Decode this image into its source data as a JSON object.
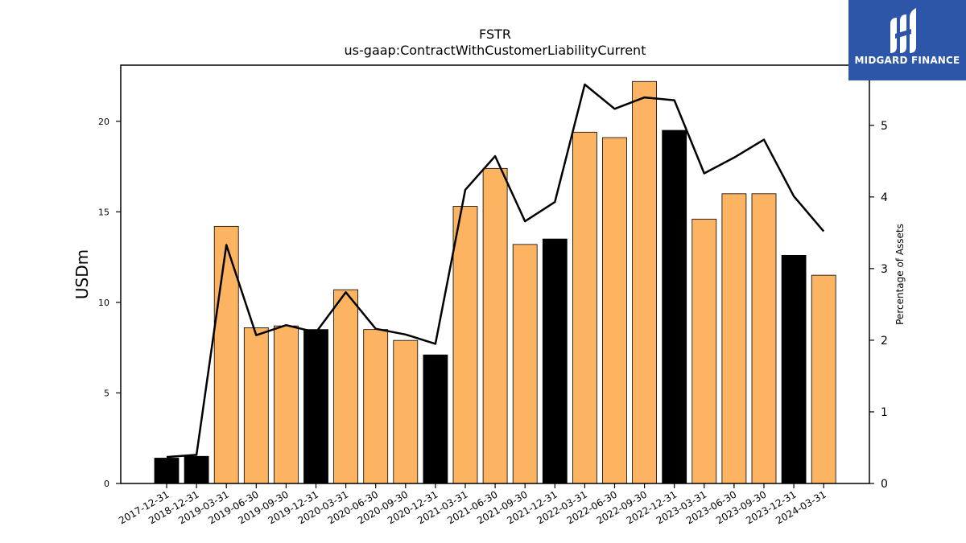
{
  "brand": {
    "name": "MIDGARD FINANCE",
    "bg_color": "#2d56a8"
  },
  "chart_data": {
    "type": "bar",
    "title": "FSTR",
    "subtitle": "us-gaap:ContractWithCustomerLiabilityCurrent",
    "ylabel": "USDm",
    "y2label": "Percentage of Assets",
    "ylim": [
      0,
      23.1
    ],
    "y2lim": [
      0,
      5.84
    ],
    "yticks": [
      0,
      5,
      10,
      15,
      20
    ],
    "y2ticks": [
      0,
      1,
      2,
      3,
      4,
      5
    ],
    "categories": [
      "2017-12-31",
      "2018-12-31",
      "2019-03-31",
      "2019-06-30",
      "2019-09-30",
      "2019-12-31",
      "2020-03-31",
      "2020-06-30",
      "2020-09-30",
      "2020-12-31",
      "2021-03-31",
      "2021-06-30",
      "2021-09-30",
      "2021-12-31",
      "2022-03-31",
      "2022-06-30",
      "2022-09-30",
      "2022-12-31",
      "2023-03-31",
      "2023-06-30",
      "2023-09-30",
      "2023-12-31",
      "2024-03-31"
    ],
    "series": [
      {
        "type": "bar",
        "values": [
          1.4,
          1.5,
          14.2,
          8.6,
          8.7,
          8.5,
          10.7,
          8.5,
          7.9,
          7.1,
          15.3,
          17.4,
          13.2,
          13.5,
          19.4,
          19.1,
          22.2,
          19.5,
          14.6,
          16.0,
          16.0,
          12.6,
          11.5
        ],
        "annual": [
          true,
          true,
          false,
          false,
          false,
          true,
          false,
          false,
          false,
          true,
          false,
          false,
          false,
          true,
          false,
          false,
          false,
          true,
          false,
          false,
          false,
          true,
          false
        ],
        "colors": {
          "annual": "#000000",
          "quarterly": "#fdb462"
        }
      },
      {
        "type": "line",
        "axis": "right",
        "color": "#000000",
        "values": [
          0.37,
          0.4,
          3.33,
          2.07,
          2.21,
          2.11,
          2.67,
          2.16,
          2.08,
          1.95,
          4.1,
          4.57,
          3.66,
          3.93,
          5.57,
          5.23,
          5.39,
          5.35,
          4.33,
          4.55,
          4.8,
          4.01,
          3.52
        ]
      }
    ],
    "legend": "none",
    "grid": false
  }
}
